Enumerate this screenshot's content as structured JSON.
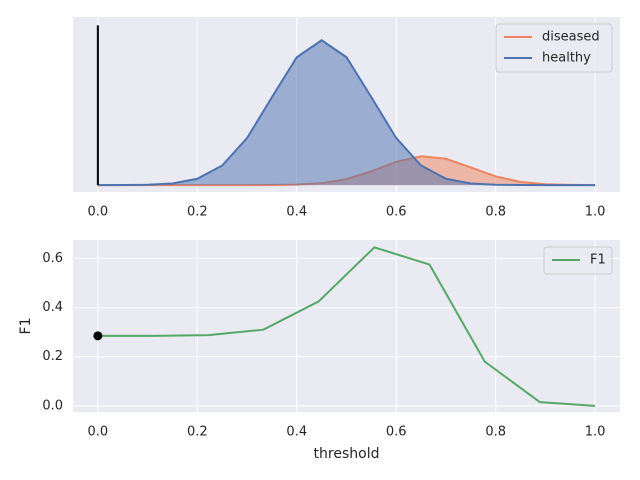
{
  "chart_data": [
    {
      "type": "area",
      "x": [
        0,
        0.05,
        0.1,
        0.15,
        0.2,
        0.25,
        0.3,
        0.35,
        0.4,
        0.45,
        0.5,
        0.55,
        0.6,
        0.65,
        0.7,
        0.75,
        0.8,
        0.85,
        0.9,
        0.95,
        1.0
      ],
      "series": [
        {
          "name": "diseased",
          "color": "#f0845e",
          "values": [
            0,
            0,
            0,
            0,
            0,
            0.0001,
            0.0003,
            0.002,
            0.012,
            0.053,
            0.165,
            0.379,
            0.641,
            0.795,
            0.725,
            0.485,
            0.238,
            0.086,
            0.023,
            0.005,
            0.001
          ]
        },
        {
          "name": "healthy",
          "color": "#4c72b0",
          "values": [
            0.0002,
            0.0013,
            0.009,
            0.044,
            0.175,
            0.54,
            1.295,
            2.42,
            3.521,
            3.989,
            3.521,
            2.42,
            1.295,
            0.54,
            0.175,
            0.044,
            0.009,
            0.0013,
            0.0002,
            0,
            0
          ]
        }
      ],
      "vline": {
        "x": 0,
        "top": 4.4,
        "color": "#000000"
      },
      "xlim": [
        -0.05,
        1.05
      ],
      "ylim": [
        -0.19,
        4.63
      ],
      "xticks": [
        {
          "value": 0,
          "label": "0.0"
        },
        0.2,
        0.4,
        0.6,
        0.8,
        {
          "value": 1,
          "label": "1.0"
        }
      ],
      "grid": true,
      "legend": "upper right"
    },
    {
      "type": "line",
      "x": [
        0,
        0.111,
        0.222,
        0.333,
        0.444,
        0.556,
        0.667,
        0.778,
        0.889,
        1.0
      ],
      "series": [
        {
          "name": "F1",
          "color": "#55a868",
          "values": [
            0.285,
            0.285,
            0.288,
            0.31,
            0.425,
            0.645,
            0.575,
            0.18,
            0.015,
            0.0
          ]
        }
      ],
      "point": {
        "x": 0,
        "y": 0.285,
        "color": "#000000"
      },
      "xlabel": "threshold",
      "ylabel": "F1",
      "xlim": [
        -0.05,
        1.05
      ],
      "ylim": [
        -0.025,
        0.675
      ],
      "xticks": [
        {
          "value": 0,
          "label": "0.0"
        },
        0.2,
        0.4,
        0.6,
        0.8,
        {
          "value": 1,
          "label": "1.0"
        }
      ],
      "yticks": [
        {
          "value": 0,
          "label": "0.0"
        },
        0.2,
        0.4,
        0.6
      ],
      "grid": true,
      "legend": "upper right"
    }
  ]
}
